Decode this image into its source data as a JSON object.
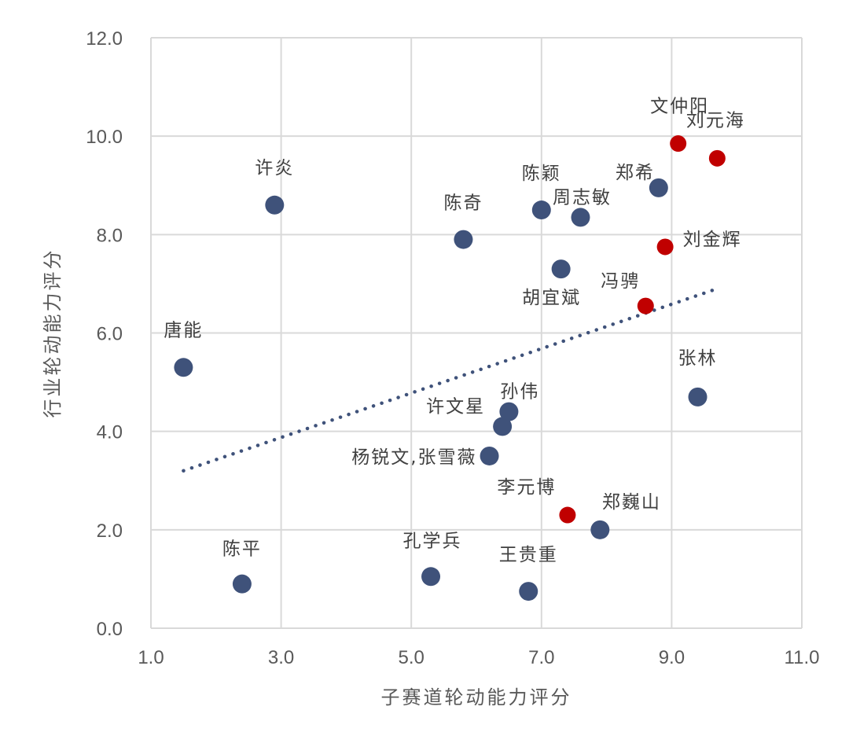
{
  "chart_data": {
    "type": "scatter",
    "xlabel": "子赛道轮动能力评分",
    "ylabel": "行业轮动能力评分",
    "xlim": [
      1.0,
      11.0
    ],
    "ylim": [
      0.0,
      12.0
    ],
    "x_ticks": [
      "1.0",
      "3.0",
      "5.0",
      "7.0",
      "9.0",
      "11.0"
    ],
    "y_ticks": [
      "0.0",
      "2.0",
      "4.0",
      "6.0",
      "8.0",
      "10.0",
      "12.0"
    ],
    "grid": true,
    "colors": {
      "navy": "#3f527a",
      "red": "#c00000",
      "trend": "#3f527a"
    },
    "trendline": {
      "style": "dotted",
      "x": [
        1.5,
        9.7
      ],
      "y": [
        3.2,
        6.9
      ]
    },
    "points": [
      {
        "name": "唐能",
        "x": 1.5,
        "y": 5.3,
        "color": "navy"
      },
      {
        "name": "陈平",
        "x": 2.4,
        "y": 0.9,
        "color": "navy"
      },
      {
        "name": "许炎",
        "x": 2.9,
        "y": 8.6,
        "color": "navy"
      },
      {
        "name": "孔学兵",
        "x": 5.3,
        "y": 1.05,
        "color": "navy"
      },
      {
        "name": "陈奇",
        "x": 5.8,
        "y": 7.9,
        "color": "navy"
      },
      {
        "name": "杨锐文,张雪薇",
        "x": 6.2,
        "y": 3.5,
        "color": "navy"
      },
      {
        "name": "许文星",
        "x": 6.4,
        "y": 4.1,
        "color": "navy"
      },
      {
        "name": "孙伟",
        "x": 6.5,
        "y": 4.4,
        "color": "navy"
      },
      {
        "name": "王贵重",
        "x": 6.8,
        "y": 0.75,
        "color": "navy"
      },
      {
        "name": "陈颖",
        "x": 7.0,
        "y": 8.5,
        "color": "navy"
      },
      {
        "name": "胡宜斌",
        "x": 7.3,
        "y": 7.3,
        "color": "navy"
      },
      {
        "name": "李元博",
        "x": 7.4,
        "y": 2.3,
        "color": "red"
      },
      {
        "name": "周志敏",
        "x": 7.6,
        "y": 8.35,
        "color": "navy"
      },
      {
        "name": "郑巍山",
        "x": 7.9,
        "y": 2.0,
        "color": "navy"
      },
      {
        "name": "冯骋",
        "x": 8.6,
        "y": 6.55,
        "color": "red"
      },
      {
        "name": "郑希",
        "x": 8.8,
        "y": 8.95,
        "color": "navy"
      },
      {
        "name": "刘金辉",
        "x": 8.9,
        "y": 7.75,
        "color": "red"
      },
      {
        "name": "文仲阳",
        "x": 9.1,
        "y": 9.85,
        "color": "red"
      },
      {
        "name": "张林",
        "x": 9.4,
        "y": 4.7,
        "color": "navy"
      },
      {
        "name": "刘元海",
        "x": 9.7,
        "y": 9.55,
        "color": "red"
      }
    ]
  }
}
